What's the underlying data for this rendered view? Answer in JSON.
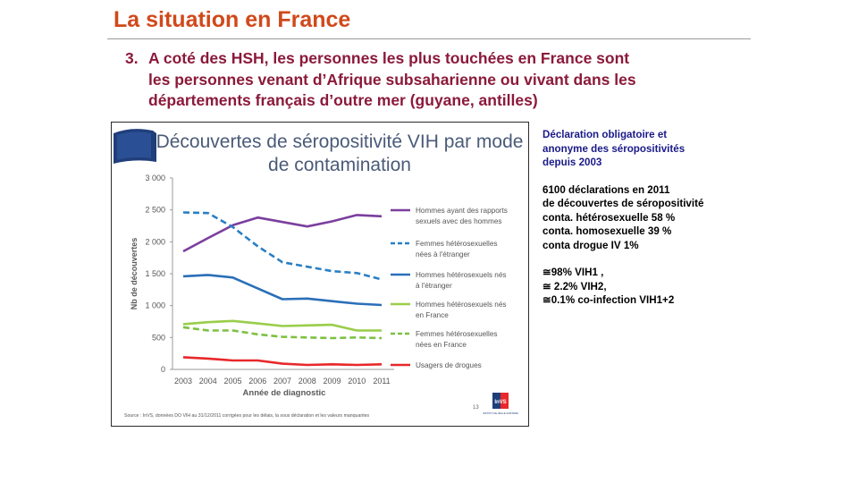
{
  "slide": {
    "title": "La situation en France",
    "subtitle": {
      "number": "3.",
      "lines": [
        "A coté des HSH, les personnes les plus touchées en France sont",
        "les personnes venant d’Afrique subsaharienne ou vivant dans les",
        "départements français d’outre mer (guyane, antilles)"
      ]
    }
  },
  "side_panel": {
    "heading": [
      "Déclaration obligatoire et",
      "anonyme des séropositivités",
      "depuis 2003"
    ],
    "stats": [
      "6100 déclarations en 2011",
      "de découvertes de séropositivité",
      "conta. hétérosexuelle 58 %",
      "conta. homosexuelle 39 %",
      "conta drogue IV 1%"
    ],
    "subtypes": [
      "≅98%  VIH1 ,",
      "≅ 2.2%  VIH2,",
      "≅0.1%  co-infection VIH1+2"
    ]
  },
  "chart_data": {
    "type": "line",
    "title": "Découvertes de séropositivité VIH par mode de contamination",
    "title_lines": [
      "Découvertes de séropositivité VIH par mode",
      "de contamination"
    ],
    "xlabel": "Année de diagnostic",
    "ylabel": "Nb de découvertes",
    "x": [
      2003,
      2004,
      2005,
      2006,
      2007,
      2008,
      2009,
      2010,
      2011
    ],
    "ylim": [
      0,
      3000
    ],
    "yticks": [
      0,
      500,
      1000,
      1500,
      2000,
      2500,
      3000
    ],
    "ytick_labels": [
      "0",
      "500",
      "1 000",
      "1 500",
      "2 000",
      "2 500",
      "3 000"
    ],
    "grid": false,
    "legend_position": "right",
    "series": [
      {
        "name": "Hommes ayant des rapports sexuels avec des hommes",
        "legend_lines": [
          "Hommes ayant des rapports",
          "sexuels avec des hommes"
        ],
        "color": "#7b3f9e",
        "dashed": false,
        "values": [
          1850,
          2060,
          2260,
          2380,
          2310,
          2240,
          2320,
          2420,
          2400
        ]
      },
      {
        "name": "Femmes hétérosexuelles nées à l'étranger",
        "legend_lines": [
          "Femmes hétérosexuelles",
          "nées à l'étranger"
        ],
        "color": "#2a7fc4",
        "dashed": true,
        "values": [
          2460,
          2450,
          2230,
          1930,
          1680,
          1610,
          1540,
          1510,
          1410
        ]
      },
      {
        "name": "Hommes hétérosexuels nés à l'étranger",
        "legend_lines": [
          "Hommes hétérosexuels nés",
          "à l'étranger"
        ],
        "color": "#2a6fb8",
        "dashed": false,
        "values": [
          1460,
          1480,
          1440,
          1270,
          1100,
          1110,
          1070,
          1030,
          1010
        ]
      },
      {
        "name": "Hommes hétérosexuels nés en France",
        "legend_lines": [
          "Hommes hétérosexuels nés",
          "en France"
        ],
        "color": "#9acd4a",
        "dashed": false,
        "values": [
          710,
          740,
          760,
          720,
          680,
          690,
          700,
          610,
          610
        ]
      },
      {
        "name": "Femmes hétérosexuelles nées en France",
        "legend_lines": [
          "Femmes hétérosexuelles",
          "nées en France"
        ],
        "color": "#7cc142",
        "dashed": true,
        "values": [
          660,
          610,
          610,
          550,
          510,
          500,
          490,
          500,
          490
        ]
      },
      {
        "name": "Usagers de drogues",
        "legend_lines": [
          "Usagers de drogues"
        ],
        "color": "#e8282a",
        "dashed": false,
        "values": [
          190,
          170,
          140,
          140,
          90,
          70,
          80,
          70,
          80
        ]
      }
    ],
    "page_number": "13",
    "logo_text": "InVS",
    "logo_caption": "INSTITUT DE VEILLE SANITAIRE",
    "source": "Source : InVS, données DO VIH au 31/12/2011 corrigées pour les délais, la sous déclaration et les valeurs manquantes"
  }
}
